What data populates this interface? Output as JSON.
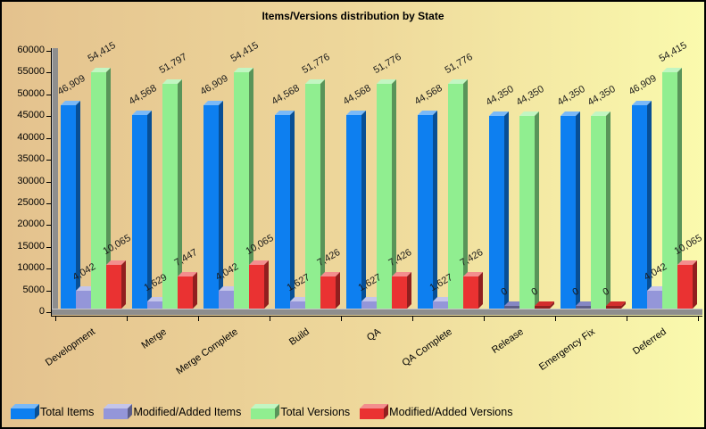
{
  "chart_data": {
    "type": "bar",
    "title": "Items/Versions distribution by State",
    "categories": [
      "Development",
      "Merge",
      "Merge Complete",
      "Build",
      "QA",
      "QA Complete",
      "Release",
      "Emergency Fix",
      "Deferred"
    ],
    "series": [
      {
        "name": "Total Items",
        "color": "#0D7FF0",
        "values": [
          46909,
          44568,
          46909,
          44568,
          44568,
          44568,
          44350,
          44350,
          46909
        ]
      },
      {
        "name": "Modified/Added Items",
        "color": "#9496D9",
        "values": [
          4042,
          1629,
          4042,
          1627,
          1627,
          1627,
          0,
          0,
          4042
        ]
      },
      {
        "name": "Total Versions",
        "color": "#90EE90",
        "values": [
          54415,
          51797,
          54415,
          51776,
          51776,
          51776,
          44350,
          44350,
          54415
        ]
      },
      {
        "name": "Modified/Added Versions",
        "color": "#EA3232",
        "values": [
          10065,
          7447,
          10065,
          7426,
          7426,
          7426,
          0,
          0,
          10065
        ]
      }
    ],
    "value_labels": {
      "Total Items": [
        "46,909",
        "44,568",
        "46,909",
        "44,568",
        "44,568",
        "44,568",
        "44,350",
        "44,350",
        "46,909"
      ],
      "Modified/Added Items": [
        "4,042",
        "1,629",
        "4,042",
        "1,627",
        "1,627",
        "1,627",
        "0",
        "0",
        "4,042"
      ],
      "Total Versions": [
        "54,415",
        "51,797",
        "54,415",
        "51,776",
        "51,776",
        "51,776",
        "44,350",
        "44,350",
        "54,415"
      ],
      "Modified/Added Versions": [
        "10,065",
        "7,447",
        "10,065",
        "7,426",
        "7,426",
        "7,426",
        "0",
        "0",
        "10,065"
      ]
    },
    "y_axis": {
      "min": 0,
      "max": 60000,
      "step": 5000,
      "tick_labels": [
        "0",
        "5000",
        "10000",
        "15000",
        "20000",
        "25000",
        "30000",
        "35000",
        "40000",
        "45000",
        "50000",
        "55000",
        "60000"
      ]
    },
    "legend": {
      "position": "bottom-left"
    },
    "grid": "off",
    "style": {
      "background_gradient_from": "#E4C28E",
      "background_gradient_to": "#FAFAAD",
      "wall_color": "#8E8E8E",
      "axis_color": "#000000",
      "label_color": "#1A1A1A"
    }
  }
}
